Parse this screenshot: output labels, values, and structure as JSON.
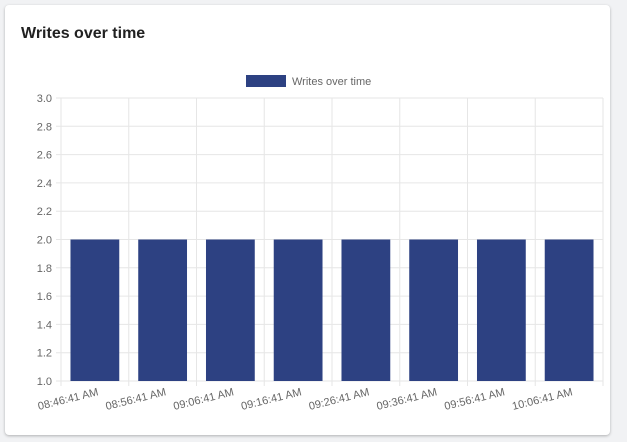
{
  "card": {
    "title": "Writes over time"
  },
  "chart_data": {
    "type": "bar",
    "categories": [
      "08:46:41 AM",
      "08:56:41 AM",
      "09:06:41 AM",
      "09:16:41 AM",
      "09:26:41 AM",
      "09:36:41 AM",
      "09:56:41 AM",
      "10:06:41 AM"
    ],
    "series": [
      {
        "name": "Writes over time",
        "values": [
          2,
          2,
          2,
          2,
          2,
          2,
          2,
          2
        ],
        "color": "#2d4182"
      }
    ],
    "ylim": [
      1.0,
      3.0
    ],
    "yticks": [
      "1.0",
      "1.2",
      "1.4",
      "1.6",
      "1.8",
      "2.0",
      "2.2",
      "2.4",
      "2.6",
      "2.8",
      "3.0"
    ],
    "grid": true,
    "legend": "top",
    "colors": {
      "grid": "#e6e6e6",
      "tick_text": "#666666"
    }
  }
}
